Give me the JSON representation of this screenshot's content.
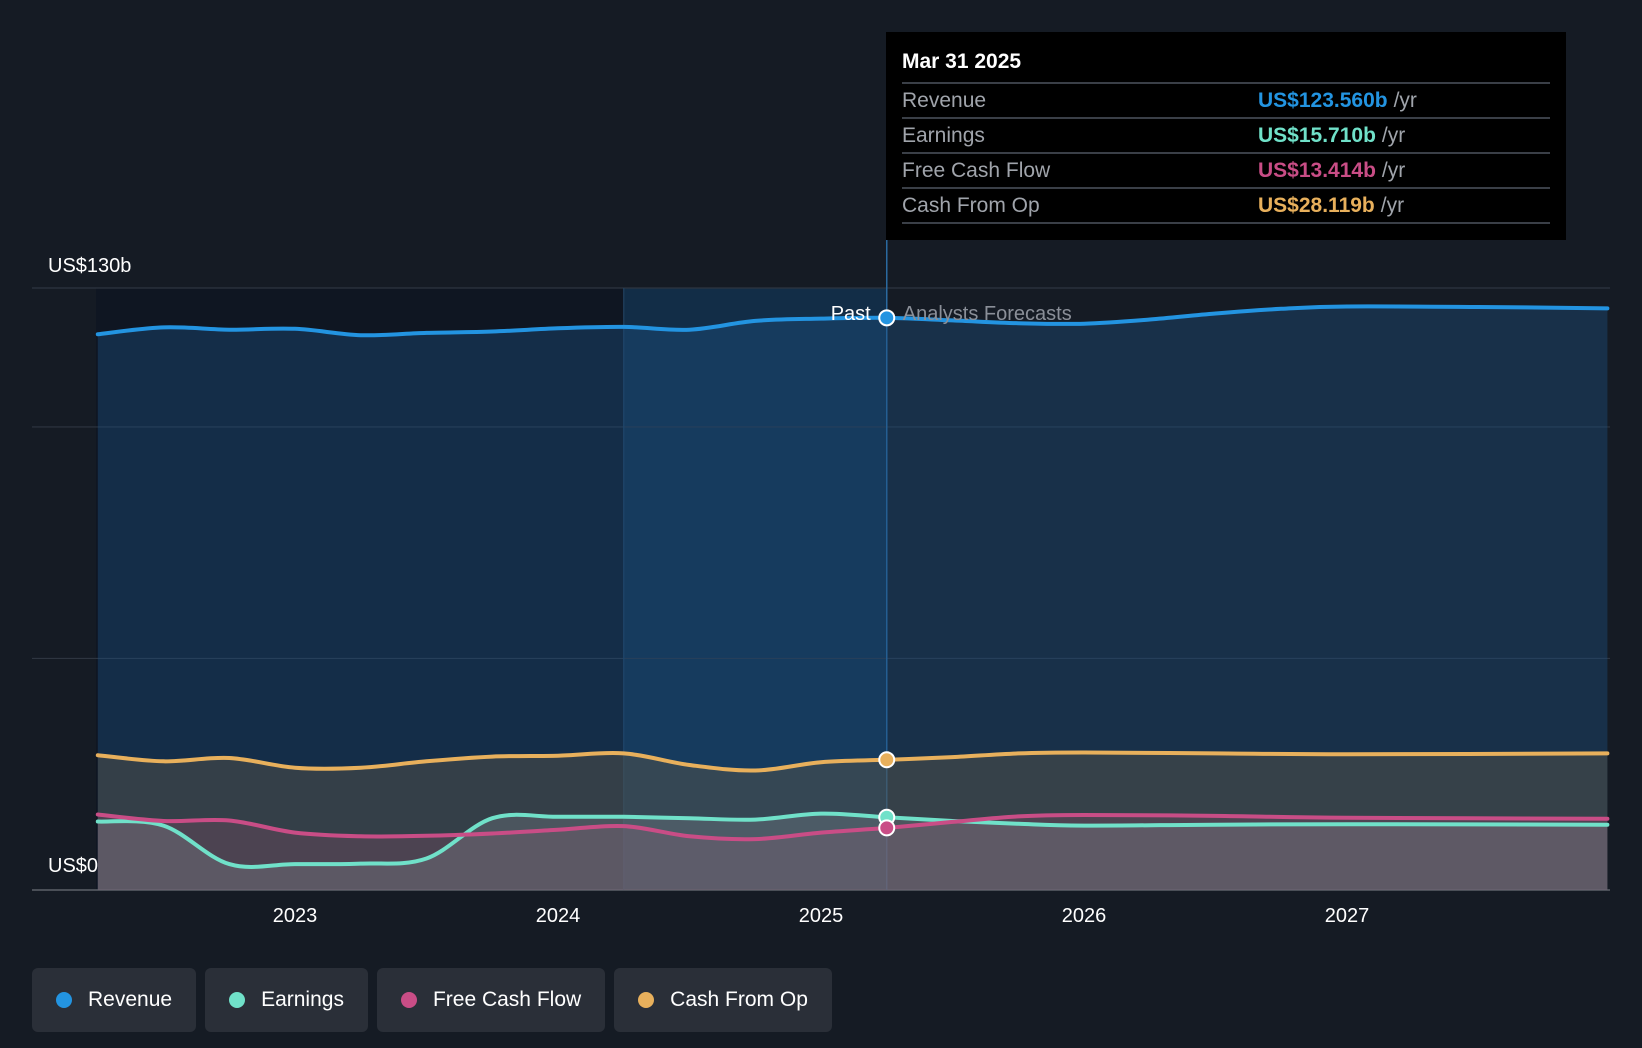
{
  "chart_data": {
    "type": "line",
    "y_axis": {
      "min_label": "US$0",
      "max_label": "US$130b",
      "ylim": [
        0,
        130
      ]
    },
    "x_ticks": [
      "2023",
      "2024",
      "2025",
      "2026",
      "2027"
    ],
    "past_label": "Past",
    "forecast_label": "Analysts Forecasts",
    "series": [
      {
        "name": "Revenue",
        "color": "#2394e1",
        "values": [
          [
            2022.25,
            120.0
          ],
          [
            2022.5,
            121.5
          ],
          [
            2022.75,
            121.0
          ],
          [
            2023.0,
            121.2
          ],
          [
            2023.25,
            119.8
          ],
          [
            2023.5,
            120.3
          ],
          [
            2023.75,
            120.6
          ],
          [
            2024.0,
            121.3
          ],
          [
            2024.25,
            121.6
          ],
          [
            2024.5,
            121.0
          ],
          [
            2024.75,
            122.9
          ],
          [
            2025.0,
            123.4
          ],
          [
            2025.25,
            123.56
          ],
          [
            2025.5,
            123.0
          ],
          [
            2025.75,
            122.4
          ],
          [
            2026.0,
            122.3
          ],
          [
            2026.25,
            123.2
          ],
          [
            2026.5,
            124.5
          ],
          [
            2026.75,
            125.5
          ],
          [
            2027.0,
            126.0
          ],
          [
            2027.5,
            125.9
          ],
          [
            2027.99,
            125.6
          ]
        ]
      },
      {
        "name": "Earnings",
        "color": "#70e1c9",
        "values": [
          [
            2022.25,
            14.8
          ],
          [
            2022.5,
            13.9
          ],
          [
            2022.75,
            5.6
          ],
          [
            2023.0,
            5.6
          ],
          [
            2023.25,
            5.7
          ],
          [
            2023.5,
            6.8
          ],
          [
            2023.75,
            15.5
          ],
          [
            2024.0,
            15.8
          ],
          [
            2024.25,
            15.8
          ],
          [
            2024.5,
            15.5
          ],
          [
            2024.75,
            15.2
          ],
          [
            2025.0,
            16.5
          ],
          [
            2025.25,
            15.71
          ],
          [
            2025.5,
            14.9
          ],
          [
            2025.75,
            14.3
          ],
          [
            2026.0,
            13.9
          ],
          [
            2026.5,
            14.1
          ],
          [
            2027.0,
            14.2
          ],
          [
            2027.99,
            14.1
          ]
        ]
      },
      {
        "name": "Free Cash Flow",
        "color": "#c94d86",
        "values": [
          [
            2022.25,
            16.3
          ],
          [
            2022.5,
            14.9
          ],
          [
            2022.75,
            15.0
          ],
          [
            2023.0,
            12.4
          ],
          [
            2023.25,
            11.6
          ],
          [
            2023.5,
            11.7
          ],
          [
            2023.75,
            12.2
          ],
          [
            2024.0,
            13.0
          ],
          [
            2024.25,
            13.8
          ],
          [
            2024.5,
            11.6
          ],
          [
            2024.75,
            11.0
          ],
          [
            2025.0,
            12.4
          ],
          [
            2025.25,
            13.414
          ],
          [
            2025.5,
            14.7
          ],
          [
            2025.75,
            15.9
          ],
          [
            2026.0,
            16.2
          ],
          [
            2026.5,
            16.0
          ],
          [
            2027.0,
            15.6
          ],
          [
            2027.99,
            15.4
          ]
        ]
      },
      {
        "name": "Cash From Op",
        "color": "#e8b05c",
        "values": [
          [
            2022.25,
            29.1
          ],
          [
            2022.5,
            27.8
          ],
          [
            2022.75,
            28.5
          ],
          [
            2023.0,
            26.4
          ],
          [
            2023.25,
            26.4
          ],
          [
            2023.5,
            27.8
          ],
          [
            2023.75,
            28.8
          ],
          [
            2024.0,
            29.0
          ],
          [
            2024.25,
            29.5
          ],
          [
            2024.5,
            27.0
          ],
          [
            2024.75,
            25.8
          ],
          [
            2025.0,
            27.6
          ],
          [
            2025.25,
            28.119
          ],
          [
            2025.5,
            28.7
          ],
          [
            2025.75,
            29.5
          ],
          [
            2026.0,
            29.7
          ],
          [
            2026.5,
            29.5
          ],
          [
            2027.0,
            29.3
          ],
          [
            2027.99,
            29.5
          ]
        ]
      }
    ],
    "highlight_x": 2025.25,
    "tooltip": {
      "date": "Mar 31 2025",
      "rows": [
        {
          "label": "Revenue",
          "value": "US$123.560b",
          "unit": "/yr",
          "color": "#2394e1"
        },
        {
          "label": "Earnings",
          "value": "US$15.710b",
          "unit": "/yr",
          "color": "#70e1c9"
        },
        {
          "label": "Free Cash Flow",
          "value": "US$13.414b",
          "unit": "/yr",
          "color": "#c94d86"
        },
        {
          "label": "Cash From Op",
          "value": "US$28.119b",
          "unit": "/yr",
          "color": "#e8b05c"
        }
      ]
    },
    "legend": [
      {
        "label": "Revenue",
        "color": "#2394e1"
      },
      {
        "label": "Earnings",
        "color": "#70e1c9"
      },
      {
        "label": "Free Cash Flow",
        "color": "#c94d86"
      },
      {
        "label": "Cash From Op",
        "color": "#e8b05c"
      }
    ]
  }
}
